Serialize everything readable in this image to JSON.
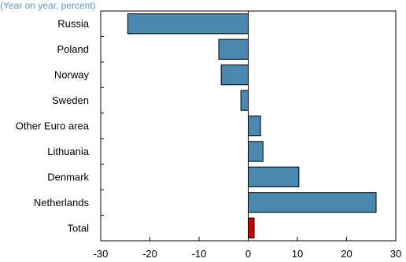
{
  "chart_data": {
    "type": "bar",
    "orientation": "horizontal",
    "subtitle": "(Year on year, percent)",
    "categories": [
      "Russia",
      "Poland",
      "Norway",
      "Sweden",
      "Other Euro area",
      "Lithuania",
      "Denmark",
      "Netherlands",
      "Total"
    ],
    "values": [
      -24.5,
      -6,
      -5.5,
      -1.5,
      2.5,
      3,
      10.3,
      26,
      1.2
    ],
    "bar_colors": [
      "#4a89ad",
      "#4a89ad",
      "#4a89ad",
      "#4a89ad",
      "#4a89ad",
      "#4a89ad",
      "#4a89ad",
      "#4a89ad",
      "#c00000"
    ],
    "xlim": [
      -30,
      30
    ],
    "x_ticks": [
      -30,
      -20,
      -10,
      0,
      10,
      20,
      30
    ],
    "grid": false
  }
}
